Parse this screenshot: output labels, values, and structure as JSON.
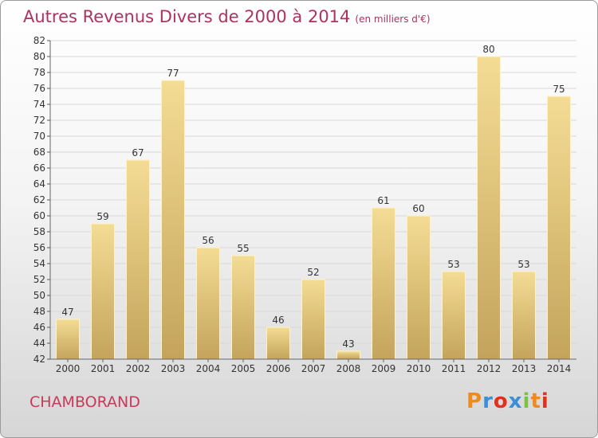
{
  "header": {
    "title": "Autres Revenus Divers de 2000 à 2014",
    "subtitle": "(en milliers d'€)"
  },
  "footer": {
    "commune": "CHAMBORAND",
    "logo_text": "Proxiti",
    "logo_colors": [
      "#f08a1c",
      "#3a8fd8",
      "#e0301e",
      "#3a8fd8",
      "#7cc242",
      "#f08a1c",
      "#e0301e"
    ]
  },
  "chart_data": {
    "type": "bar",
    "title": "Autres Revenus Divers de 2000 à 2014",
    "categories": [
      "2000",
      "2001",
      "2002",
      "2003",
      "2004",
      "2005",
      "2006",
      "2007",
      "2008",
      "2009",
      "2010",
      "2011",
      "2012",
      "2013",
      "2014"
    ],
    "values": [
      47,
      59,
      67,
      77,
      56,
      55,
      46,
      52,
      43,
      61,
      60,
      53,
      80,
      53,
      75
    ],
    "data_labels": [
      "47",
      "59",
      "67",
      "77",
      "56",
      "55",
      "46",
      "52",
      "43",
      "61",
      "60",
      "53",
      "80",
      "53",
      "75"
    ],
    "ylim": [
      42,
      82
    ],
    "yticks": [
      42,
      44,
      46,
      48,
      50,
      52,
      54,
      56,
      58,
      60,
      62,
      64,
      66,
      68,
      70,
      72,
      74,
      76,
      78,
      80,
      82
    ],
    "grid": true,
    "colors": {
      "bar_light": "#f4dc94",
      "bar_dark": "#c9a85e",
      "bar_edge": "#fff3c8",
      "axis_text": "#333333",
      "grid": "#d8d8d8"
    }
  }
}
